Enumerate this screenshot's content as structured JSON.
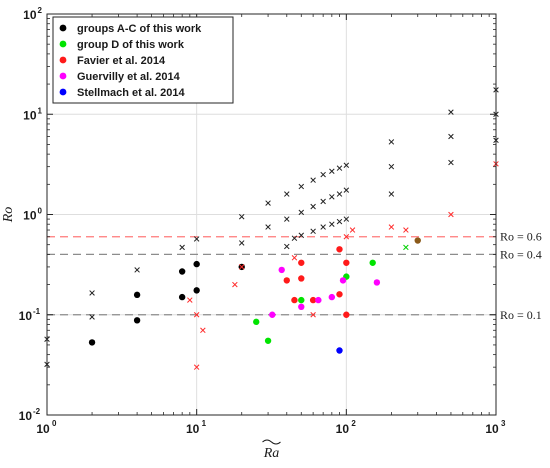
{
  "chart_data": {
    "type": "scatter",
    "x_scale": "log",
    "y_scale": "log",
    "xlim": [
      1,
      1000
    ],
    "ylim": [
      0.01,
      100
    ],
    "xlabel": "Ra~",
    "ylabel": "Ro",
    "x_ticks": [
      {
        "value": 1,
        "base": "10",
        "exp": "0"
      },
      {
        "value": 10,
        "base": "10",
        "exp": "1"
      },
      {
        "value": 100,
        "base": "10",
        "exp": "2"
      },
      {
        "value": 1000,
        "base": "10",
        "exp": "3"
      }
    ],
    "y_ticks": [
      {
        "value": 0.01,
        "base": "10",
        "exp": "-2"
      },
      {
        "value": 0.1,
        "base": "10",
        "exp": "-1"
      },
      {
        "value": 1,
        "base": "10",
        "exp": "0"
      },
      {
        "value": 10,
        "base": "10",
        "exp": "1"
      },
      {
        "value": 100,
        "base": "10",
        "exp": "2"
      }
    ],
    "reference_lines": [
      {
        "y": 0.6,
        "label": "Ro = 0.6",
        "color": "#ff7a7a"
      },
      {
        "y": 0.4,
        "label": "Ro = 0.4",
        "color": "#8c8c8c"
      },
      {
        "y": 0.1,
        "label": "Ro = 0.1",
        "color": "#8c8c8c"
      }
    ],
    "legend_placement": "top-left",
    "series": [
      {
        "name": "groups A-C of this work",
        "color": "#000000",
        "marker": "dot",
        "points": [
          [
            2,
            0.053
          ],
          [
            4,
            0.088
          ],
          [
            4,
            0.158
          ],
          [
            8,
            0.15
          ],
          [
            8,
            0.27
          ],
          [
            10,
            0.175
          ],
          [
            10,
            0.32
          ],
          [
            20,
            0.3
          ]
        ]
      },
      {
        "name": "group D of this work",
        "color": "#00e400",
        "marker": "dot",
        "points": [
          [
            25,
            0.085
          ],
          [
            30,
            0.055
          ],
          [
            50,
            0.14
          ],
          [
            100,
            0.24
          ],
          [
            150,
            0.33
          ]
        ]
      },
      {
        "name": "Favier et al. 2014",
        "color": "#ff1a1a",
        "marker": "dot",
        "points": [
          [
            40,
            0.22
          ],
          [
            45,
            0.14
          ],
          [
            50,
            0.23
          ],
          [
            50,
            0.33
          ],
          [
            60,
            0.14
          ],
          [
            90,
            0.45
          ],
          [
            90,
            0.16
          ],
          [
            100,
            0.33
          ],
          [
            100,
            0.1
          ]
        ]
      },
      {
        "name": "Guervilly et al. 2014",
        "color": "#ff00ff",
        "marker": "dot",
        "points": [
          [
            32,
            0.1
          ],
          [
            37,
            0.28
          ],
          [
            50,
            0.12
          ],
          [
            65,
            0.14
          ],
          [
            80,
            0.15
          ],
          [
            95,
            0.22
          ],
          [
            160,
            0.21
          ]
        ]
      },
      {
        "name": "Stellmach et al. 2014",
        "color": "#0000ff",
        "marker": "dot",
        "points": [
          [
            90,
            0.044
          ]
        ]
      },
      {
        "color": "#8b5a1a",
        "marker": "dot",
        "points": [
          [
            300,
            0.55
          ]
        ]
      },
      {
        "color": "#222222",
        "marker": "x",
        "points": [
          [
            1,
            0.032
          ],
          [
            1,
            0.057
          ],
          [
            2,
            0.095
          ],
          [
            2,
            0.165
          ],
          [
            4,
            0.28
          ],
          [
            8,
            0.47
          ],
          [
            10,
            0.57
          ],
          [
            20,
            0.52
          ],
          [
            20,
            0.95
          ],
          [
            30,
            0.75
          ],
          [
            30,
            1.3
          ],
          [
            40,
            0.48
          ],
          [
            40,
            0.9
          ],
          [
            40,
            1.6
          ],
          [
            45,
            0.58
          ],
          [
            50,
            0.62
          ],
          [
            50,
            1.05
          ],
          [
            50,
            1.9
          ],
          [
            60,
            0.68
          ],
          [
            60,
            1.2
          ],
          [
            60,
            2.2
          ],
          [
            70,
            0.75
          ],
          [
            70,
            1.35
          ],
          [
            70,
            2.5
          ],
          [
            80,
            0.8
          ],
          [
            80,
            1.5
          ],
          [
            80,
            2.7
          ],
          [
            90,
            0.85
          ],
          [
            90,
            1.6
          ],
          [
            90,
            2.9
          ],
          [
            100,
            0.9
          ],
          [
            100,
            1.75
          ],
          [
            100,
            3.1
          ],
          [
            200,
            1.6
          ],
          [
            200,
            3.0
          ],
          [
            200,
            5.3
          ],
          [
            500,
            3.3
          ],
          [
            500,
            6.0
          ],
          [
            500,
            10.5
          ],
          [
            1000,
            5.5
          ],
          [
            1000,
            10.0
          ],
          [
            1000,
            17.5
          ]
        ]
      },
      {
        "color": "#ff2a2a",
        "marker": "x",
        "points": [
          [
            9,
            0.14
          ],
          [
            10,
            0.1
          ],
          [
            10,
            0.03
          ],
          [
            11,
            0.07
          ],
          [
            18,
            0.2
          ],
          [
            20,
            0.3
          ],
          [
            45,
            0.37
          ],
          [
            60,
            0.1
          ],
          [
            100,
            0.6
          ],
          [
            110,
            0.7
          ],
          [
            200,
            0.75
          ],
          [
            250,
            0.7
          ],
          [
            500,
            1.0
          ],
          [
            1000,
            3.2
          ]
        ]
      },
      {
        "color": "#00d000",
        "marker": "x",
        "points": [
          [
            250,
            0.47
          ]
        ]
      }
    ]
  }
}
